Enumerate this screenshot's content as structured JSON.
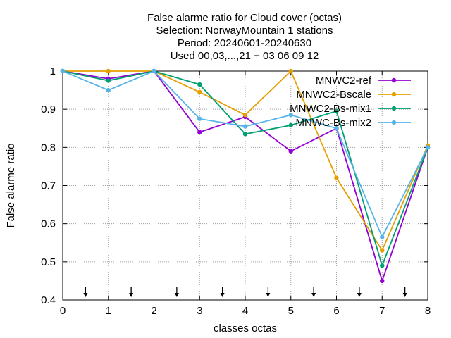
{
  "chart_data": {
    "type": "line",
    "title_lines": [
      "False alarme ratio  for Cloud cover (octas)",
      "Selection: NorwayMountain      1 stations",
      "Period: 20240601-20240630",
      "Used 00,03,...,21 + 03 06 09 12"
    ],
    "xlabel": "classes octas",
    "ylabel": "False alarme ratio",
    "xlim": [
      0,
      8
    ],
    "ylim": [
      0.4,
      1.0
    ],
    "x_ticks": [
      0,
      1,
      2,
      3,
      4,
      5,
      6,
      7,
      8
    ],
    "x_tick_labels": [
      "0",
      "1",
      "2",
      "3",
      "4",
      "5",
      "6",
      "7",
      "8"
    ],
    "y_ticks": [
      0.4,
      0.5,
      0.6,
      0.7,
      0.8,
      0.9,
      1.0
    ],
    "y_tick_labels": [
      "0.4",
      "0.5",
      "0.6",
      "0.7",
      "0.8",
      "0.9",
      "1"
    ],
    "grid": true,
    "legend_position": "top-right",
    "arrow_markers_x": [
      0.5,
      1.5,
      2.5,
      3.5,
      4.5,
      5.5,
      6.5,
      7.5
    ],
    "x": [
      0,
      1,
      2,
      3,
      4,
      5,
      6,
      7,
      8
    ],
    "series": [
      {
        "name": "MNWC2-ref",
        "color": "#9400d3",
        "values": [
          1.0,
          0.98,
          1.0,
          0.84,
          0.88,
          0.79,
          0.85,
          0.45,
          0.8
        ]
      },
      {
        "name": "MNWC2-Bscale",
        "color": "#e69f00",
        "values": [
          1.0,
          1.0,
          1.0,
          0.945,
          0.885,
          1.0,
          0.72,
          0.53,
          0.805
        ]
      },
      {
        "name": "MNWC2-Bs-mix1",
        "color": "#009e73",
        "values": [
          1.0,
          0.975,
          1.0,
          0.965,
          0.835,
          0.858,
          0.895,
          0.49,
          0.8
        ]
      },
      {
        "name": "MNWC-Bs-mix2",
        "color": "#56b4e9",
        "values": [
          1.0,
          0.95,
          1.0,
          0.875,
          0.855,
          0.885,
          0.85,
          0.565,
          0.8
        ]
      }
    ]
  }
}
